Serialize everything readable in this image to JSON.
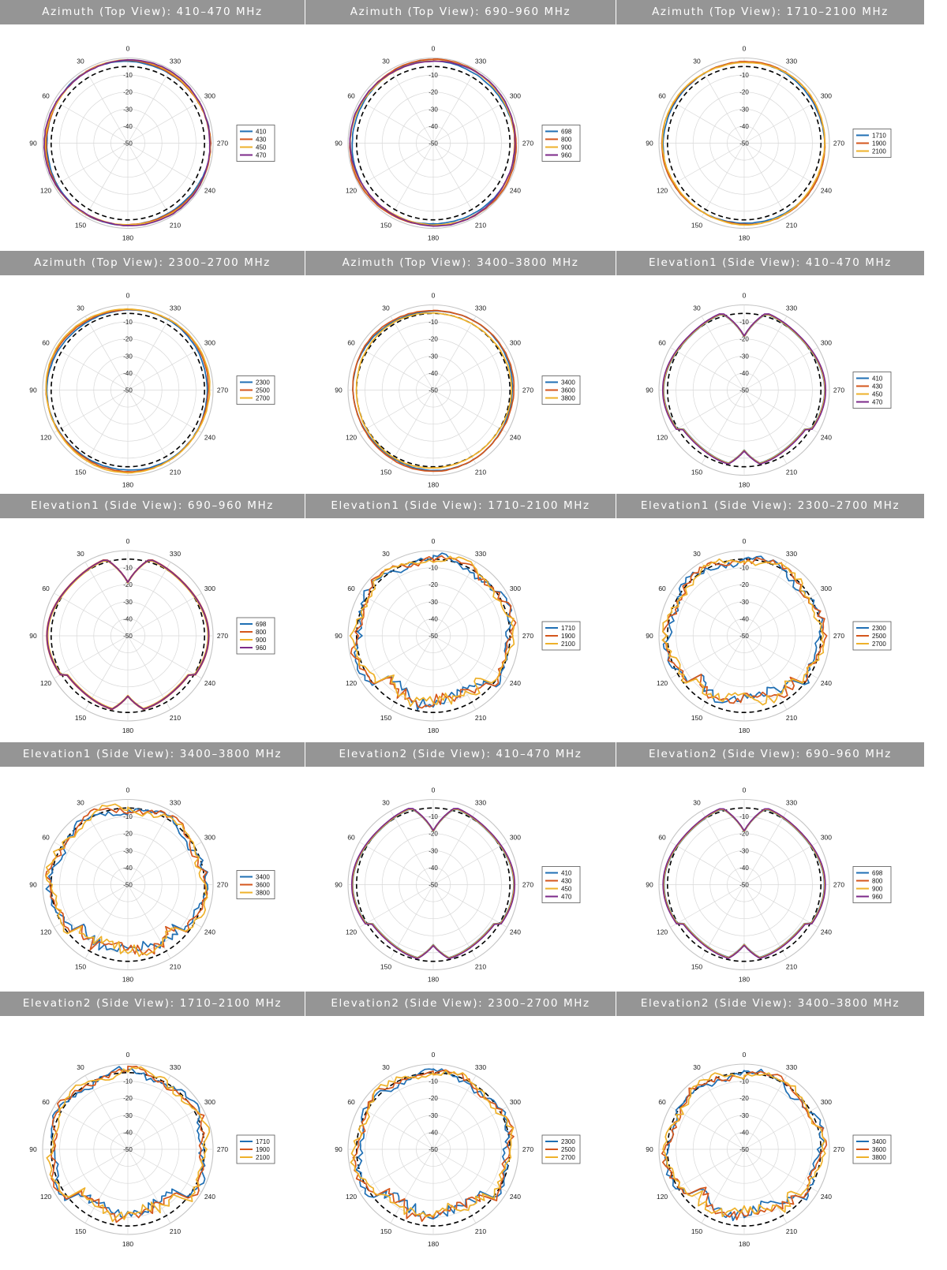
{
  "colors": {
    "c1": "#1f6fb4",
    "c2": "#d4561c",
    "c3": "#eeb12a",
    "c4": "#7c2a8a",
    "title_bg": "#959595",
    "grid": "#d8d8d8",
    "reference": "#000000"
  },
  "chart_data": [
    {
      "type": "polar",
      "title": "Azimuth (Top View): 410–470 MHz",
      "theta_ticks": [
        "0",
        "30",
        "60",
        "90",
        "120",
        "150",
        "180",
        "210",
        "240",
        "270",
        "300",
        "330"
      ],
      "r_ticks": [
        "-10",
        "-20",
        "-30",
        "-40",
        "-50"
      ],
      "rlim": [
        -50,
        0
      ],
      "legend": "right",
      "reference_db": -5,
      "series": [
        {
          "name": "410",
          "color_key": "c1",
          "shape": "omni",
          "level": -2.0
        },
        {
          "name": "430",
          "color_key": "c2",
          "shape": "omni",
          "level": -1.8
        },
        {
          "name": "450",
          "color_key": "c3",
          "shape": "omni",
          "level": -1.6
        },
        {
          "name": "470",
          "color_key": "c4",
          "shape": "omni",
          "level": -1.4
        }
      ]
    },
    {
      "type": "polar",
      "title": "Azimuth (Top View): 690–960 MHz",
      "theta_ticks": [
        "0",
        "30",
        "60",
        "90",
        "120",
        "150",
        "180",
        "210",
        "240",
        "270",
        "300",
        "330"
      ],
      "r_ticks": [
        "-10",
        "-20",
        "-30",
        "-40",
        "-50"
      ],
      "rlim": [
        -50,
        0
      ],
      "legend": "right",
      "reference_db": -5,
      "series": [
        {
          "name": "698",
          "color_key": "c1",
          "shape": "omni",
          "level": -2.2
        },
        {
          "name": "800",
          "color_key": "c2",
          "shape": "omni",
          "level": -1.2
        },
        {
          "name": "900",
          "color_key": "c3",
          "shape": "omni",
          "level": -1.8
        },
        {
          "name": "960",
          "color_key": "c4",
          "shape": "omni",
          "level": -1.6
        }
      ]
    },
    {
      "type": "polar",
      "title": "Azimuth (Top View): 1710–2100 MHz",
      "theta_ticks": [
        "0",
        "30",
        "60",
        "90",
        "120",
        "150",
        "180",
        "210",
        "240",
        "270",
        "300",
        "330"
      ],
      "r_ticks": [
        "-10",
        "-20",
        "-30",
        "-40",
        "-50"
      ],
      "rlim": [
        -50,
        0
      ],
      "legend": "right",
      "reference_db": -5,
      "series": [
        {
          "name": "1710",
          "color_key": "c1",
          "shape": "omni",
          "level": -2.6
        },
        {
          "name": "1900",
          "color_key": "c2",
          "shape": "omni",
          "level": -2.2
        },
        {
          "name": "2100",
          "color_key": "c3",
          "shape": "omni",
          "level": -2.4
        }
      ]
    },
    {
      "type": "polar",
      "title": "Azimuth (Top View): 2300–2700 MHz",
      "theta_ticks": [
        "0",
        "30",
        "60",
        "90",
        "120",
        "150",
        "180",
        "210",
        "240",
        "270",
        "300",
        "330"
      ],
      "r_ticks": [
        "-10",
        "-20",
        "-30",
        "-40",
        "-50"
      ],
      "rlim": [
        -50,
        0
      ],
      "legend": "right",
      "reference_db": -5,
      "series": [
        {
          "name": "2300",
          "color_key": "c1",
          "shape": "omni",
          "level": -3.0
        },
        {
          "name": "2500",
          "color_key": "c2",
          "shape": "omni",
          "level": -2.4
        },
        {
          "name": "2700",
          "color_key": "c3",
          "shape": "omni",
          "level": -2.0
        }
      ]
    },
    {
      "type": "polar",
      "title": "Azimuth (Top View): 3400–3800 MHz",
      "theta_ticks": [
        "0",
        "30",
        "60",
        "90",
        "120",
        "150",
        "180",
        "210",
        "240",
        "270",
        "300",
        "330"
      ],
      "r_ticks": [
        "-10",
        "-20",
        "-30",
        "-40",
        "-50"
      ],
      "rlim": [
        -50,
        0
      ],
      "legend": "right",
      "reference_db": -5,
      "series": [
        {
          "name": "3400",
          "color_key": "c1",
          "shape": "omni",
          "level": -3.2
        },
        {
          "name": "3600",
          "color_key": "c2",
          "shape": "omni",
          "level": -2.8
        },
        {
          "name": "3800",
          "color_key": "c3",
          "shape": "omni",
          "level": -4.5
        }
      ]
    },
    {
      "type": "polar",
      "title": "Elevation1 (Side View): 410–470 MHz",
      "theta_ticks": [
        "0",
        "30",
        "60",
        "90",
        "120",
        "150",
        "180",
        "210",
        "240",
        "270",
        "300",
        "330"
      ],
      "r_ticks": [
        "-10",
        "-20",
        "-30",
        "-40",
        "-50"
      ],
      "rlim": [
        -50,
        0
      ],
      "legend": "right",
      "reference_db": -5,
      "series": [
        {
          "name": "410",
          "color_key": "c1",
          "shape": "dipole",
          "level": -3.0
        },
        {
          "name": "430",
          "color_key": "c2",
          "shape": "dipole",
          "level": -2.6
        },
        {
          "name": "450",
          "color_key": "c3",
          "shape": "dipole",
          "level": -2.8
        },
        {
          "name": "470",
          "color_key": "c4",
          "shape": "dipole",
          "level": -2.4
        }
      ]
    },
    {
      "type": "polar",
      "title": "Elevation1 (Side View): 690–960 MHz",
      "theta_ticks": [
        "0",
        "30",
        "60",
        "90",
        "120",
        "150",
        "180",
        "210",
        "240",
        "270",
        "300",
        "330"
      ],
      "r_ticks": [
        "-10",
        "-20",
        "-30",
        "-40",
        "-50"
      ],
      "rlim": [
        -50,
        0
      ],
      "legend": "right",
      "reference_db": -5,
      "series": [
        {
          "name": "698",
          "color_key": "c1",
          "shape": "dipole",
          "level": -3.0
        },
        {
          "name": "800",
          "color_key": "c2",
          "shape": "dipole",
          "level": -2.6
        },
        {
          "name": "900",
          "color_key": "c3",
          "shape": "dipole",
          "level": -3.2
        },
        {
          "name": "960",
          "color_key": "c4",
          "shape": "dipole",
          "level": -2.8
        }
      ]
    },
    {
      "type": "polar",
      "title": "Elevation1 (Side View): 1710–2100 MHz",
      "theta_ticks": [
        "0",
        "30",
        "60",
        "90",
        "120",
        "150",
        "180",
        "210",
        "240",
        "270",
        "300",
        "330"
      ],
      "r_ticks": [
        "-10",
        "-20",
        "-30",
        "-40",
        "-50"
      ],
      "rlim": [
        -50,
        0
      ],
      "legend": "right",
      "reference_db": -5,
      "series": [
        {
          "name": "1710",
          "color_key": "c1",
          "shape": "lobed",
          "level": -3.5
        },
        {
          "name": "1900",
          "color_key": "c2",
          "shape": "lobed",
          "level": -3.0
        },
        {
          "name": "2100",
          "color_key": "c3",
          "shape": "lobed",
          "level": -3.2
        }
      ]
    },
    {
      "type": "polar",
      "title": "Elevation1 (Side View): 2300–2700 MHz",
      "theta_ticks": [
        "0",
        "30",
        "60",
        "90",
        "120",
        "150",
        "180",
        "210",
        "240",
        "270",
        "300",
        "330"
      ],
      "r_ticks": [
        "-10",
        "-20",
        "-30",
        "-40",
        "-50"
      ],
      "rlim": [
        -50,
        0
      ],
      "legend": "right",
      "reference_db": -5,
      "series": [
        {
          "name": "2300",
          "color_key": "c1",
          "shape": "lobed",
          "level": -4.0
        },
        {
          "name": "2500",
          "color_key": "c2",
          "shape": "lobed",
          "level": -3.5
        },
        {
          "name": "2700",
          "color_key": "c3",
          "shape": "lobed",
          "level": -3.8
        }
      ]
    },
    {
      "type": "polar",
      "title": "Elevation1 (Side View): 3400–3800 MHz",
      "theta_ticks": [
        "0",
        "30",
        "60",
        "90",
        "120",
        "150",
        "180",
        "210",
        "240",
        "270",
        "300",
        "330"
      ],
      "r_ticks": [
        "-10",
        "-20",
        "-30",
        "-40",
        "-50"
      ],
      "rlim": [
        -50,
        0
      ],
      "legend": "right",
      "reference_db": -5,
      "series": [
        {
          "name": "3400",
          "color_key": "c1",
          "shape": "lobed",
          "level": -4.0
        },
        {
          "name": "3600",
          "color_key": "c2",
          "shape": "lobed",
          "level": -3.6
        },
        {
          "name": "3800",
          "color_key": "c3",
          "shape": "lobed",
          "level": -3.4
        }
      ]
    },
    {
      "type": "polar",
      "title": "Elevation2 (Side View): 410–470 MHz",
      "theta_ticks": [
        "0",
        "30",
        "60",
        "90",
        "120",
        "150",
        "180",
        "210",
        "240",
        "270",
        "300",
        "330"
      ],
      "r_ticks": [
        "-10",
        "-20",
        "-30",
        "-40",
        "-50"
      ],
      "rlim": [
        -50,
        0
      ],
      "legend": "right",
      "reference_db": -5,
      "series": [
        {
          "name": "410",
          "color_key": "c1",
          "shape": "dipole",
          "level": -3.0
        },
        {
          "name": "430",
          "color_key": "c2",
          "shape": "dipole",
          "level": -2.6
        },
        {
          "name": "450",
          "color_key": "c3",
          "shape": "dipole",
          "level": -2.8
        },
        {
          "name": "470",
          "color_key": "c4",
          "shape": "dipole",
          "level": -2.4
        }
      ]
    },
    {
      "type": "polar",
      "title": "Elevation2 (Side View): 690–960 MHz",
      "theta_ticks": [
        "0",
        "30",
        "60",
        "90",
        "120",
        "150",
        "180",
        "210",
        "240",
        "270",
        "300",
        "330"
      ],
      "r_ticks": [
        "-10",
        "-20",
        "-30",
        "-40",
        "-50"
      ],
      "rlim": [
        -50,
        0
      ],
      "legend": "right",
      "reference_db": -5,
      "series": [
        {
          "name": "698",
          "color_key": "c1",
          "shape": "dipole",
          "level": -3.2
        },
        {
          "name": "800",
          "color_key": "c2",
          "shape": "dipole",
          "level": -2.8
        },
        {
          "name": "900",
          "color_key": "c3",
          "shape": "dipole",
          "level": -3.0
        },
        {
          "name": "960",
          "color_key": "c4",
          "shape": "dipole",
          "level": -2.6
        }
      ]
    },
    {
      "type": "polar",
      "title": "Elevation2 (Side View): 1710–2100 MHz",
      "theta_ticks": [
        "0",
        "30",
        "60",
        "90",
        "120",
        "150",
        "180",
        "210",
        "240",
        "270",
        "300",
        "330"
      ],
      "r_ticks": [
        "-10",
        "-20",
        "-30",
        "-40",
        "-50"
      ],
      "rlim": [
        -50,
        0
      ],
      "legend": "right",
      "reference_db": -5,
      "series": [
        {
          "name": "1710",
          "color_key": "c1",
          "shape": "lobed",
          "level": -3.6
        },
        {
          "name": "1900",
          "color_key": "c2",
          "shape": "lobed",
          "level": -3.2
        },
        {
          "name": "2100",
          "color_key": "c3",
          "shape": "lobed",
          "level": -3.0
        }
      ]
    },
    {
      "type": "polar",
      "title": "Elevation2 (Side View): 2300–2700 MHz",
      "theta_ticks": [
        "0",
        "30",
        "60",
        "90",
        "120",
        "150",
        "180",
        "210",
        "240",
        "270",
        "300",
        "330"
      ],
      "r_ticks": [
        "-10",
        "-20",
        "-30",
        "-40",
        "-50"
      ],
      "rlim": [
        -50,
        0
      ],
      "legend": "right",
      "reference_db": -5,
      "series": [
        {
          "name": "2300",
          "color_key": "c1",
          "shape": "lobed",
          "level": -4.0
        },
        {
          "name": "2500",
          "color_key": "c2",
          "shape": "lobed",
          "level": -3.6
        },
        {
          "name": "2700",
          "color_key": "c3",
          "shape": "lobed",
          "level": -3.2
        }
      ]
    },
    {
      "type": "polar",
      "title": "Elevation2 (Side View): 3400–3800 MHz",
      "theta_ticks": [
        "0",
        "30",
        "60",
        "90",
        "120",
        "150",
        "180",
        "210",
        "240",
        "270",
        "300",
        "330"
      ],
      "r_ticks": [
        "-10",
        "-20",
        "-30",
        "-40",
        "-50"
      ],
      "rlim": [
        -50,
        0
      ],
      "legend": "right",
      "reference_db": -5,
      "series": [
        {
          "name": "3400",
          "color_key": "c1",
          "shape": "lobed",
          "level": -4.2
        },
        {
          "name": "3600",
          "color_key": "c2",
          "shape": "lobed",
          "level": -3.8
        },
        {
          "name": "3800",
          "color_key": "c3",
          "shape": "lobed",
          "level": -3.4
        }
      ]
    }
  ]
}
